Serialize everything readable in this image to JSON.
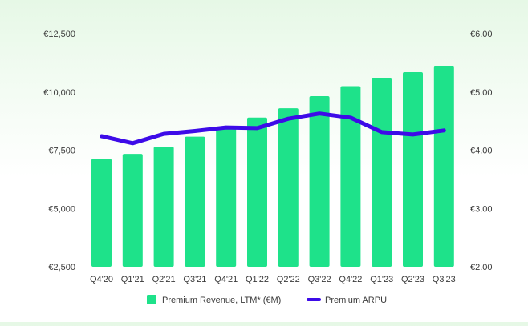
{
  "chart_data": {
    "type": "bar",
    "categories": [
      "Q4'20",
      "Q1'21",
      "Q2'21",
      "Q3'21",
      "Q4'21",
      "Q1'22",
      "Q2'22",
      "Q3'22",
      "Q4'22",
      "Q1'23",
      "Q2'23",
      "Q3'23"
    ],
    "series": [
      {
        "name": "Premium Revenue, LTM* (€M)",
        "type": "bar",
        "axis": "left",
        "color": "#1ee28a",
        "values": [
          7130,
          7340,
          7650,
          8080,
          8450,
          8900,
          9300,
          9820,
          10250,
          10580,
          10850,
          11100
        ]
      },
      {
        "name": "Premium ARPU",
        "type": "line",
        "axis": "right",
        "color": "#3d0be8",
        "values": [
          4.24,
          4.12,
          4.28,
          4.33,
          4.39,
          4.38,
          4.54,
          4.63,
          4.56,
          4.31,
          4.27,
          4.34
        ]
      }
    ],
    "y_left": {
      "lim": [
        2500,
        12500
      ],
      "ticks": [
        2500,
        5000,
        7500,
        10000,
        12500
      ],
      "tick_labels": [
        "€2,500",
        "€5,000",
        "€7,500",
        "€10,000",
        "€12,500"
      ]
    },
    "y_right": {
      "lim": [
        2.0,
        6.0
      ],
      "ticks": [
        2,
        3,
        4,
        5,
        6
      ],
      "tick_labels": [
        "€2.00",
        "€3.00",
        "€4.00",
        "€5.00",
        "€6.00"
      ]
    },
    "grid": false,
    "legend_position": "bottom-center",
    "title": "",
    "xlabel": "",
    "ylabel": ""
  }
}
